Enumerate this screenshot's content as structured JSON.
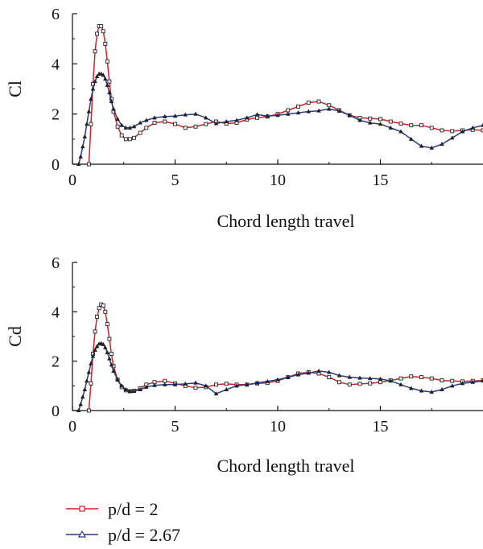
{
  "legend": [
    {
      "label": "p/d = 2",
      "color": "#cc2229",
      "marker": "square"
    },
    {
      "label": "p/d = 2.67",
      "color": "#2b3a87",
      "marker": "triangle"
    }
  ],
  "chart_data": [
    {
      "type": "line",
      "title": "",
      "xlabel": "Chord length travel",
      "ylabel": "Cl",
      "xlim": [
        0,
        20
      ],
      "ylim": [
        0,
        6
      ],
      "xticks": [
        0,
        5,
        10,
        15
      ],
      "yticks": [
        0,
        2,
        4,
        6
      ],
      "grid": false,
      "series": [
        {
          "name": "p/d = 2",
          "color": "#cc2229",
          "marker": "square",
          "x": [
            0.8,
            0.9,
            1.0,
            1.1,
            1.2,
            1.3,
            1.4,
            1.5,
            1.6,
            1.7,
            1.8,
            1.9,
            2.0,
            2.2,
            2.4,
            2.6,
            2.8,
            3.0,
            3.3,
            3.6,
            4.0,
            4.5,
            5.0,
            5.5,
            6.0,
            6.5,
            7.0,
            7.5,
            8.0,
            8.5,
            9.0,
            9.5,
            10.0,
            10.5,
            11.0,
            11.5,
            12.0,
            12.5,
            13.0,
            13.5,
            14.0,
            14.5,
            15.0,
            15.5,
            16.0,
            16.5,
            17.0,
            17.5,
            18.0,
            18.5,
            19.0,
            19.5,
            20.0
          ],
          "y": [
            0.0,
            1.6,
            3.2,
            4.5,
            5.2,
            5.5,
            5.5,
            5.3,
            4.8,
            4.1,
            3.3,
            2.6,
            2.1,
            1.5,
            1.15,
            1.0,
            1.0,
            1.05,
            1.25,
            1.45,
            1.65,
            1.7,
            1.6,
            1.45,
            1.5,
            1.6,
            1.7,
            1.62,
            1.65,
            1.78,
            1.85,
            1.9,
            2.0,
            2.15,
            2.3,
            2.45,
            2.5,
            2.35,
            2.15,
            1.95,
            1.85,
            1.82,
            1.8,
            1.7,
            1.62,
            1.55,
            1.55,
            1.45,
            1.35,
            1.32,
            1.35,
            1.37,
            1.35
          ]
        },
        {
          "name": "p/d = 2.67",
          "color": "#2b3a87",
          "marker": "triangle",
          "x": [
            0.3,
            0.4,
            0.5,
            0.6,
            0.7,
            0.8,
            0.9,
            1.0,
            1.1,
            1.2,
            1.3,
            1.4,
            1.5,
            1.6,
            1.7,
            1.8,
            1.9,
            2.0,
            2.2,
            2.4,
            2.6,
            2.8,
            3.0,
            3.3,
            3.6,
            4.0,
            4.5,
            5.0,
            5.5,
            6.0,
            6.5,
            7.0,
            7.5,
            8.0,
            8.5,
            9.0,
            9.5,
            10.0,
            10.5,
            11.0,
            11.5,
            12.0,
            12.5,
            13.0,
            13.5,
            14.0,
            14.5,
            15.0,
            15.5,
            16.0,
            16.5,
            17.0,
            17.5,
            18.0,
            18.5,
            19.0,
            19.5,
            20.0
          ],
          "y": [
            0.0,
            0.3,
            0.7,
            1.1,
            1.6,
            2.1,
            2.6,
            3.0,
            3.3,
            3.5,
            3.6,
            3.6,
            3.55,
            3.4,
            3.15,
            2.85,
            2.5,
            2.2,
            1.8,
            1.55,
            1.45,
            1.45,
            1.5,
            1.65,
            1.75,
            1.85,
            1.9,
            1.92,
            1.97,
            2.0,
            1.85,
            1.62,
            1.7,
            1.75,
            1.85,
            1.98,
            1.92,
            1.95,
            2.0,
            2.05,
            2.1,
            2.13,
            2.2,
            2.12,
            1.95,
            1.75,
            1.65,
            1.6,
            1.45,
            1.3,
            1.0,
            0.72,
            0.65,
            0.8,
            1.05,
            1.3,
            1.45,
            1.55
          ]
        }
      ]
    },
    {
      "type": "line",
      "title": "",
      "xlabel": "Chord length travel",
      "ylabel": "Cd",
      "xlim": [
        0,
        20
      ],
      "ylim": [
        0,
        6
      ],
      "xticks": [
        0,
        5,
        10,
        15
      ],
      "yticks": [
        0,
        2,
        4,
        6
      ],
      "grid": false,
      "series": [
        {
          "name": "p/d = 2",
          "color": "#cc2229",
          "marker": "square",
          "x": [
            0.8,
            0.9,
            1.0,
            1.1,
            1.2,
            1.3,
            1.4,
            1.5,
            1.6,
            1.7,
            1.8,
            1.9,
            2.0,
            2.2,
            2.4,
            2.6,
            2.8,
            3.0,
            3.3,
            3.6,
            4.0,
            4.5,
            5.0,
            5.5,
            6.0,
            6.5,
            7.0,
            7.5,
            8.0,
            8.5,
            9.0,
            9.5,
            10.0,
            10.5,
            11.0,
            11.5,
            12.0,
            12.5,
            13.0,
            13.5,
            14.0,
            14.5,
            15.0,
            15.5,
            16.0,
            16.5,
            17.0,
            17.5,
            18.0,
            18.5,
            19.0,
            19.5,
            20.0
          ],
          "y": [
            0.0,
            1.1,
            2.3,
            3.2,
            3.8,
            4.15,
            4.3,
            4.25,
            4.0,
            3.5,
            2.9,
            2.3,
            1.8,
            1.25,
            0.95,
            0.82,
            0.78,
            0.8,
            0.9,
            1.05,
            1.15,
            1.2,
            1.1,
            1.0,
            0.92,
            0.95,
            1.05,
            1.08,
            1.05,
            1.05,
            1.1,
            1.12,
            1.2,
            1.35,
            1.5,
            1.55,
            1.5,
            1.35,
            1.15,
            1.05,
            1.08,
            1.1,
            1.15,
            1.22,
            1.3,
            1.38,
            1.35,
            1.3,
            1.22,
            1.2,
            1.18,
            1.2,
            1.22
          ]
        },
        {
          "name": "p/d = 2.67",
          "color": "#2b3a87",
          "marker": "triangle",
          "x": [
            0.3,
            0.4,
            0.5,
            0.6,
            0.7,
            0.8,
            0.9,
            1.0,
            1.1,
            1.2,
            1.3,
            1.4,
            1.5,
            1.6,
            1.7,
            1.8,
            1.9,
            2.0,
            2.2,
            2.4,
            2.6,
            2.8,
            3.0,
            3.3,
            3.6,
            4.0,
            4.5,
            5.0,
            5.5,
            6.0,
            6.5,
            7.0,
            7.5,
            8.0,
            8.5,
            9.0,
            9.5,
            10.0,
            10.5,
            11.0,
            11.5,
            12.0,
            12.5,
            13.0,
            13.5,
            14.0,
            14.5,
            15.0,
            15.5,
            16.0,
            16.5,
            17.0,
            17.5,
            18.0,
            18.5,
            19.0,
            19.5,
            20.0
          ],
          "y": [
            0.0,
            0.25,
            0.55,
            0.85,
            1.2,
            1.55,
            1.9,
            2.2,
            2.45,
            2.6,
            2.7,
            2.72,
            2.68,
            2.55,
            2.35,
            2.1,
            1.85,
            1.6,
            1.25,
            1.0,
            0.85,
            0.78,
            0.78,
            0.85,
            0.95,
            1.02,
            1.05,
            1.05,
            1.08,
            1.12,
            1.0,
            0.68,
            0.85,
            1.0,
            1.05,
            1.12,
            1.18,
            1.25,
            1.35,
            1.45,
            1.52,
            1.6,
            1.55,
            1.42,
            1.35,
            1.32,
            1.3,
            1.28,
            1.2,
            1.05,
            0.9,
            0.8,
            0.75,
            0.85,
            1.0,
            1.1,
            1.15,
            1.2
          ]
        }
      ]
    }
  ]
}
